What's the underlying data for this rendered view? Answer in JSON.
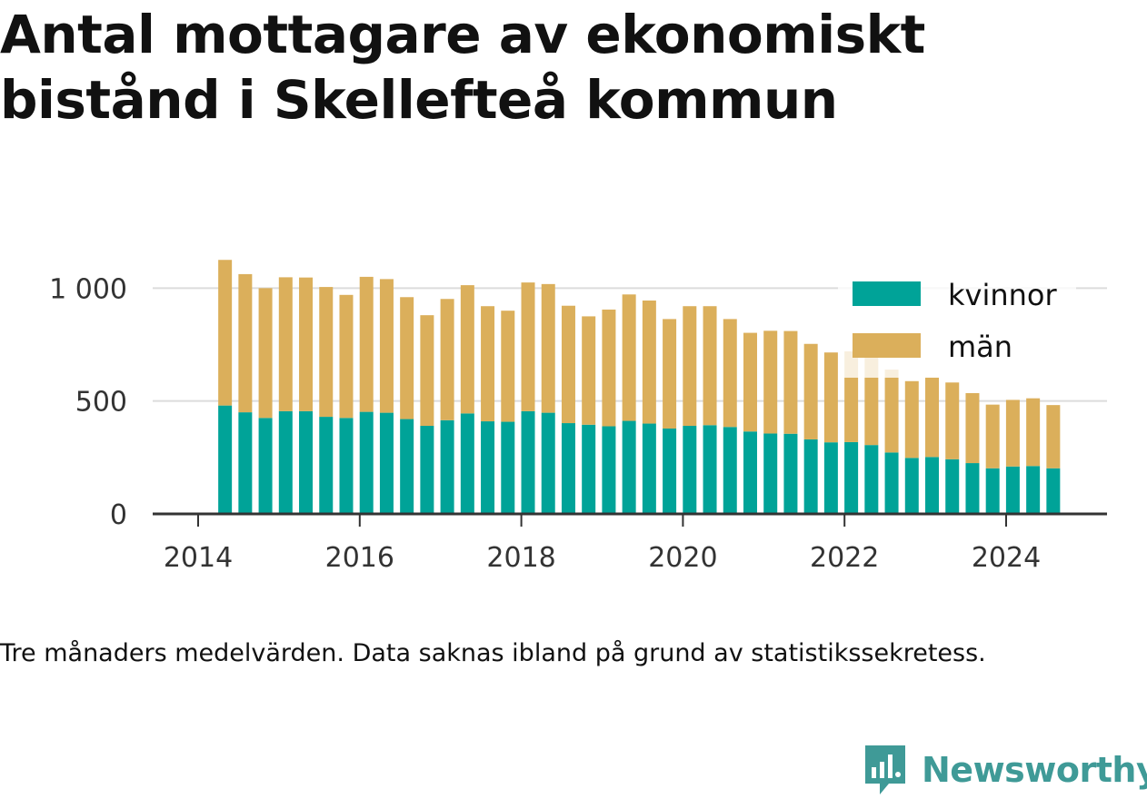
{
  "chart_data": {
    "type": "bar",
    "stacked": true,
    "title": "Antal mottagare av ekonomiskt bistånd i Skellefteå kommun",
    "x": [
      "2014-05",
      "2014-08",
      "2014-11",
      "2015-02",
      "2015-05",
      "2015-08",
      "2015-11",
      "2016-02",
      "2016-05",
      "2016-08",
      "2016-11",
      "2017-02",
      "2017-05",
      "2017-08",
      "2017-11",
      "2018-02",
      "2018-05",
      "2018-08",
      "2018-11",
      "2019-02",
      "2019-05",
      "2019-08",
      "2019-11",
      "2020-02",
      "2020-05",
      "2020-08",
      "2020-11",
      "2021-02",
      "2021-05",
      "2021-08",
      "2021-11",
      "2022-02",
      "2022-05",
      "2022-08",
      "2022-11",
      "2023-02",
      "2023-05",
      "2023-08",
      "2023-11",
      "2024-02",
      "2024-05",
      "2024-08"
    ],
    "series": [
      {
        "name": "kvinnor",
        "color": "#00a398",
        "values": [
          480,
          450,
          425,
          455,
          455,
          430,
          425,
          452,
          448,
          420,
          390,
          415,
          445,
          410,
          408,
          455,
          448,
          402,
          395,
          388,
          412,
          400,
          378,
          390,
          393,
          385,
          365,
          356,
          355,
          330,
          317,
          318,
          305,
          272,
          248,
          252,
          242,
          225,
          202,
          210,
          212,
          202
        ]
      },
      {
        "name": "män",
        "color": "#dbaf5b",
        "values": [
          645,
          612,
          575,
          593,
          592,
          575,
          545,
          598,
          592,
          540,
          490,
          537,
          568,
          510,
          492,
          570,
          570,
          520,
          480,
          517,
          560,
          545,
          485,
          530,
          527,
          478,
          437,
          455,
          455,
          423,
          398,
          402,
          412,
          367,
          340,
          352,
          340,
          310,
          282,
          295,
          300,
          280
        ]
      }
    ],
    "ylim": [
      0,
      1130
    ],
    "yticks": [
      0,
      500,
      1000
    ],
    "ytick_labels": [
      "0",
      "500",
      "1 000"
    ],
    "xticks": [
      2014,
      2016,
      2018,
      2020,
      2022,
      2024
    ],
    "xtick_labels": [
      "2014",
      "2016",
      "2018",
      "2020",
      "2022",
      "2024"
    ],
    "legend": "top-right",
    "grid": true
  },
  "footnote": "Tre månaders medelvärden. Data saknas ibland på grund av statistikssekretess.",
  "brand": {
    "name": "Newsworthy",
    "icon": "newsworthy-logo-icon",
    "color": "#3f9a97"
  }
}
